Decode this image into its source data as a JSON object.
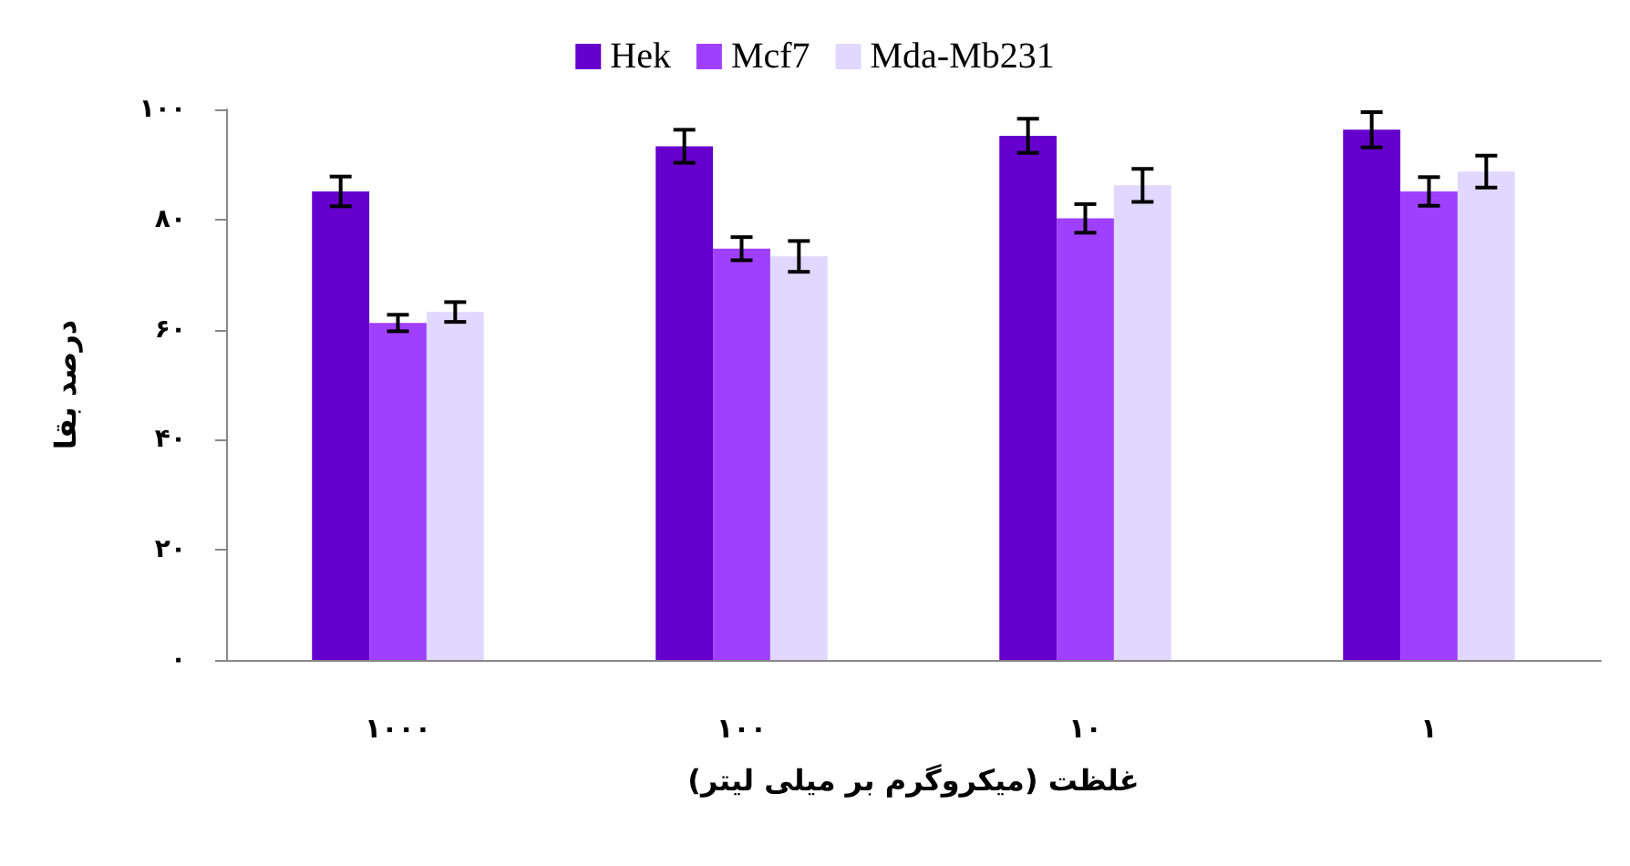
{
  "chart_data": {
    "type": "bar",
    "xlabel": "غلظت (میکروگرم بر میلی لیتر)",
    "ylabel": "درصد بقا",
    "categories": [
      "۱۰۰۰",
      "۱۰۰",
      "۱۰",
      "۱"
    ],
    "series": [
      {
        "name": "Hek",
        "color": "#6600cc",
        "values": [
          85.1,
          93.3,
          95.2,
          96.3
        ],
        "errors": [
          2.7,
          3,
          3.1,
          3.2
        ]
      },
      {
        "name": "Mcf7",
        "color": "#a040ff",
        "values": [
          61.2,
          74.7,
          80.2,
          85.1
        ],
        "errors": [
          1.5,
          2.1,
          2.6,
          2.6
        ]
      },
      {
        "name": "Mda-Mb231",
        "color": "#e0d8ff",
        "values": [
          63.2,
          73.3,
          86.2,
          88.7
        ],
        "errors": [
          1.8,
          2.8,
          3,
          2.9
        ]
      }
    ],
    "ylim": [
      0,
      100
    ],
    "yticks": [
      {
        "value": 0,
        "label": "۰"
      },
      {
        "value": 20,
        "label": "۲۰"
      },
      {
        "value": 40,
        "label": "۴۰"
      },
      {
        "value": 60,
        "label": "۶۰"
      },
      {
        "value": 80,
        "label": "۸۰"
      },
      {
        "value": 100,
        "label": "۱۰۰"
      }
    ],
    "legend": "top",
    "grid": false
  }
}
